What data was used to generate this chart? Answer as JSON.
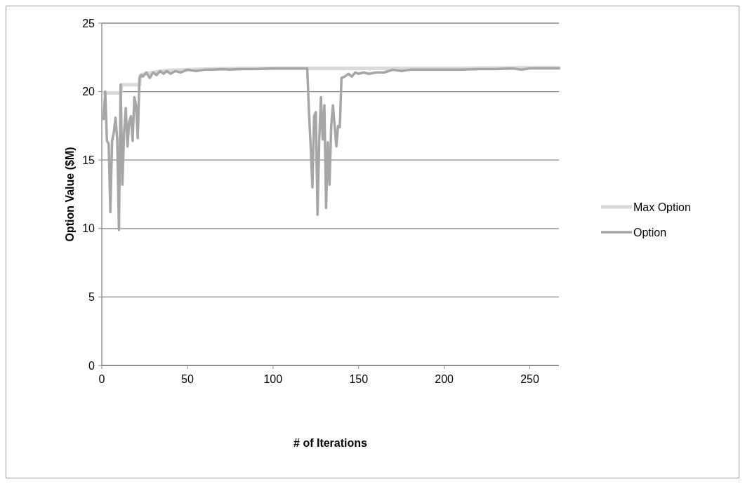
{
  "chart_data": {
    "type": "line",
    "xlabel": "# of Iterations",
    "ylabel": "Option Value ($M)",
    "xlim": [
      0,
      267
    ],
    "ylim": [
      0,
      25
    ],
    "xticks": [
      0,
      50,
      100,
      150,
      200,
      250
    ],
    "yticks": [
      0,
      5,
      10,
      15,
      20,
      25
    ],
    "grid": "y",
    "legend": "right",
    "marker": "none",
    "line_style": "solid",
    "series": [
      {
        "name": "Max Option",
        "color": "#d9d9d9",
        "x": [
          1,
          11,
          11.5,
          22,
          22.5,
          25,
          30,
          35,
          40,
          50,
          60,
          80,
          100,
          120,
          150,
          200,
          250,
          267
        ],
        "values": [
          19.9,
          19.9,
          20.5,
          20.5,
          21.2,
          21.3,
          21.4,
          21.5,
          21.55,
          21.6,
          21.65,
          21.7,
          21.7,
          21.7,
          21.7,
          21.7,
          21.75,
          21.75
        ]
      },
      {
        "name": "Option",
        "color": "#a6a6a6",
        "x": [
          1,
          2,
          3,
          4,
          5,
          6,
          7,
          8,
          9,
          10,
          11,
          12,
          13,
          14,
          15,
          16,
          17,
          18,
          19,
          20,
          21,
          22,
          23,
          24,
          26,
          28,
          30,
          32,
          34,
          36,
          38,
          40,
          43,
          46,
          50,
          55,
          60,
          65,
          70,
          75,
          80,
          90,
          100,
          110,
          119,
          120,
          121,
          122,
          123,
          124,
          125,
          126,
          127,
          128,
          129,
          130,
          131,
          132,
          133,
          134,
          135,
          136,
          137,
          138,
          139,
          140,
          142,
          144,
          146,
          148,
          150,
          153,
          156,
          160,
          165,
          170,
          175,
          180,
          190,
          200,
          210,
          220,
          230,
          240,
          245,
          250,
          255,
          260,
          267
        ],
        "values": [
          18.0,
          20.0,
          16.4,
          16.2,
          11.2,
          16.4,
          17.0,
          18.1,
          16.5,
          9.9,
          20.5,
          13.2,
          17.0,
          18.8,
          16.0,
          17.8,
          18.2,
          16.4,
          19.6,
          19.0,
          16.6,
          21.0,
          21.2,
          21.1,
          21.4,
          21.0,
          21.4,
          21.2,
          21.5,
          21.3,
          21.5,
          21.3,
          21.5,
          21.4,
          21.6,
          21.5,
          21.6,
          21.6,
          21.65,
          21.6,
          21.65,
          21.65,
          21.7,
          21.7,
          21.7,
          21.7,
          18.5,
          16.0,
          13.0,
          18.2,
          18.5,
          11.0,
          16.5,
          19.6,
          16.5,
          19.0,
          11.5,
          16.3,
          13.2,
          17.5,
          19.0,
          17.5,
          16.0,
          17.5,
          17.4,
          21.0,
          21.1,
          21.3,
          21.1,
          21.4,
          21.3,
          21.4,
          21.3,
          21.4,
          21.4,
          21.6,
          21.5,
          21.6,
          21.6,
          21.6,
          21.6,
          21.65,
          21.65,
          21.7,
          21.6,
          21.7,
          21.7,
          21.7,
          21.7
        ]
      }
    ]
  }
}
